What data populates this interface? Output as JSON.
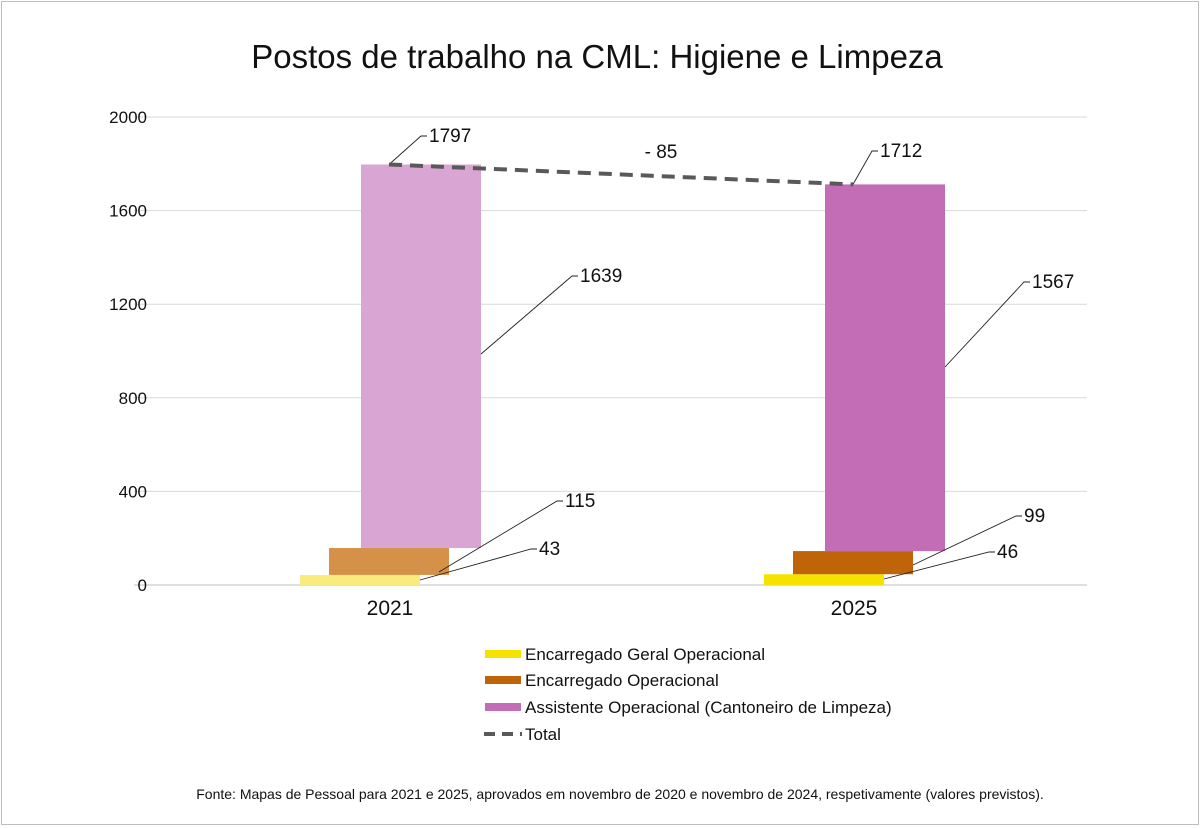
{
  "chart_data": {
    "type": "bar",
    "title": "Postos de trabalho na CML: Higiene e Limpeza",
    "categories": [
      "2021",
      "2025"
    ],
    "ylim": [
      0,
      2000
    ],
    "yticks": [
      0,
      400,
      800,
      1200,
      1600,
      2000
    ],
    "grid": true,
    "legend_position": "bottom",
    "series": [
      {
        "name": "Encarregado Geral Operacional",
        "values": [
          43,
          46
        ],
        "colors": [
          "#FAEB7E",
          "#F5E200"
        ]
      },
      {
        "name": "Encarregado Operacional",
        "values": [
          115,
          99
        ],
        "colors": [
          "#D69148",
          "#C0640A"
        ]
      },
      {
        "name": "Assistente Operacional (Cantoneiro de Limpeza)",
        "values": [
          1639,
          1567
        ],
        "colors": [
          "#D9A6D3",
          "#C36DB6"
        ]
      },
      {
        "name": "Total",
        "type": "line",
        "style": "dashed",
        "values": [
          1797,
          1712
        ],
        "color": "#595959"
      }
    ],
    "annotation": "- 85",
    "legend_colors": [
      "#F5E200",
      "#C0640A",
      "#C36DB6",
      "#595959"
    ]
  },
  "source_note": "Fonte: Mapas de Pessoal para 2021 e 2025, aprovados em novembro de 2020 e novembro de 2024, respetivamente (valores previstos)."
}
